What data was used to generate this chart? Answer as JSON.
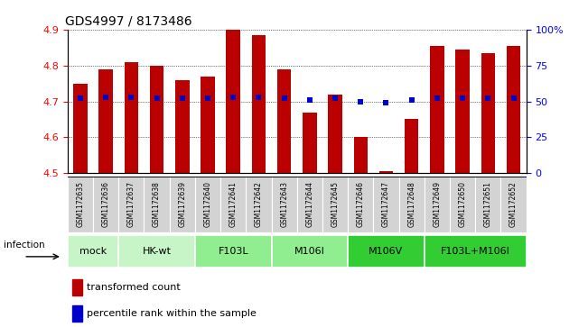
{
  "title": "GDS4997 / 8173486",
  "samples": [
    "GSM1172635",
    "GSM1172636",
    "GSM1172637",
    "GSM1172638",
    "GSM1172639",
    "GSM1172640",
    "GSM1172641",
    "GSM1172642",
    "GSM1172643",
    "GSM1172644",
    "GSM1172645",
    "GSM1172646",
    "GSM1172647",
    "GSM1172648",
    "GSM1172649",
    "GSM1172650",
    "GSM1172651",
    "GSM1172652"
  ],
  "transformed_counts": [
    4.75,
    4.79,
    4.81,
    4.8,
    4.76,
    4.77,
    4.9,
    4.885,
    4.79,
    4.67,
    4.72,
    4.6,
    4.505,
    4.65,
    4.855,
    4.845,
    4.835,
    4.855
  ],
  "percentile_ranks": [
    52,
    53,
    53,
    52,
    52,
    52,
    53,
    53,
    52,
    51,
    52,
    50,
    49,
    51,
    52,
    52,
    52,
    52
  ],
  "groups": [
    {
      "label": "mock",
      "start": 0,
      "end": 2,
      "color": "#c8f5c8"
    },
    {
      "label": "HK-wt",
      "start": 2,
      "end": 5,
      "color": "#c8f5c8"
    },
    {
      "label": "F103L",
      "start": 5,
      "end": 8,
      "color": "#90ee90"
    },
    {
      "label": "M106I",
      "start": 8,
      "end": 11,
      "color": "#90ee90"
    },
    {
      "label": "M106V",
      "start": 11,
      "end": 14,
      "color": "#32cd32"
    },
    {
      "label": "F103L+M106I",
      "start": 14,
      "end": 18,
      "color": "#32cd32"
    }
  ],
  "infection_label": "infection",
  "ylim_left": [
    4.5,
    4.9
  ],
  "ylim_right": [
    0,
    100
  ],
  "yticks_left": [
    4.5,
    4.6,
    4.7,
    4.8,
    4.9
  ],
  "yticks_right": [
    0,
    25,
    50,
    75,
    100
  ],
  "ytick_labels_right": [
    "0",
    "25",
    "50",
    "75",
    "100%"
  ],
  "bar_color": "#bb0000",
  "dot_color": "#0000cc",
  "bar_width": 0.55,
  "cell_color": "#d3d3d3"
}
